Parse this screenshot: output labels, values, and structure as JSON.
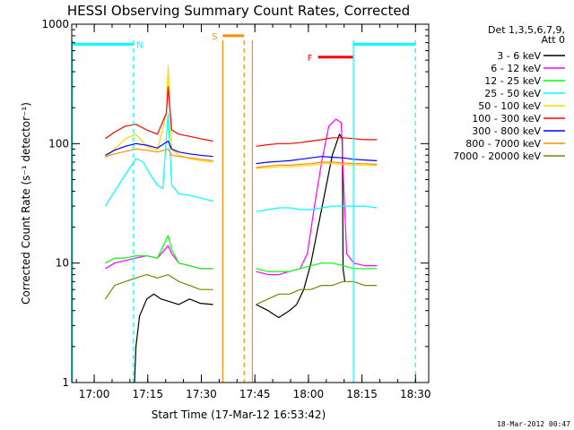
{
  "chart_data": {
    "type": "line",
    "title": "HESSI Observing Summary Count Rates, Corrected",
    "xlabel": "Start Time (17-Mar-12 16:53:42)",
    "ylabel": "Corrected Count Rate (s⁻¹ detector⁻¹)",
    "yscale": "log",
    "ylim": [
      1,
      1000
    ],
    "xlim_minutes": [
      0,
      100
    ],
    "y_ticks": [
      {
        "value": 1,
        "label": "1"
      },
      {
        "value": 10,
        "label": "10"
      },
      {
        "value": 100,
        "label": "100"
      },
      {
        "value": 1000,
        "label": "1000"
      }
    ],
    "x_ticks": [
      {
        "value": 6.3,
        "label": "17:00"
      },
      {
        "value": 21.3,
        "label": "17:15"
      },
      {
        "value": 36.3,
        "label": "17:30"
      },
      {
        "value": 51.3,
        "label": "17:45"
      },
      {
        "value": 66.3,
        "label": "18:00"
      },
      {
        "value": 81.3,
        "label": "18:15"
      },
      {
        "value": 96.3,
        "label": "18:30"
      }
    ],
    "legend_header": [
      "Det 1,3,5,6,7,9,",
      "Att 0"
    ],
    "legend_placement": "right",
    "footer": "18-Mar-2012 00:47",
    "markers": [
      {
        "label": "N",
        "color": "#00ffff",
        "start": 0,
        "end": 17.3
      },
      {
        "label": "S",
        "color": "#ff8c00",
        "start": 42.3,
        "end": 48.3
      },
      {
        "label": "F",
        "color": "#ff0000",
        "start": 69.0,
        "end": 78.9
      }
    ],
    "vlines": [
      {
        "x": 0.2,
        "color": "#00ffff",
        "dashed": false
      },
      {
        "x": 17.3,
        "color": "#00ffff",
        "dashed": true
      },
      {
        "x": 42.3,
        "color": "#ff8c00",
        "dashed": false
      },
      {
        "x": 48.3,
        "color": "#ff8c00",
        "dashed": true
      },
      {
        "x": 50.6,
        "color": "#ff8c00",
        "dashed": false
      },
      {
        "x": 78.9,
        "color": "#00ffff",
        "dashed": false
      },
      {
        "x": 96.3,
        "color": "#00ffff",
        "dashed": true
      }
    ],
    "series": [
      {
        "name": "3 - 6 keV",
        "color": "#000000",
        "segments": [
          [
            [
              17.6,
              1.0
            ],
            [
              18.0,
              2.0
            ],
            [
              19.0,
              3.6
            ],
            [
              21.0,
              5.0
            ],
            [
              23.0,
              5.5
            ],
            [
              25.0,
              5.0
            ],
            [
              27.0,
              4.8
            ],
            [
              30.0,
              4.5
            ],
            [
              33.0,
              5.0
            ],
            [
              36.0,
              4.6
            ],
            [
              39.6,
              4.5
            ]
          ],
          [
            [
              51.6,
              4.5
            ],
            [
              55.0,
              4.0
            ],
            [
              58.0,
              3.5
            ],
            [
              61.0,
              4.0
            ],
            [
              63.0,
              4.5
            ],
            [
              65.0,
              6.0
            ],
            [
              67.0,
              10.0
            ],
            [
              69.0,
              20.0
            ],
            [
              71.0,
              40.0
            ],
            [
              73.0,
              80.0
            ],
            [
              75.0,
              120.0
            ],
            [
              75.8,
              110.0
            ],
            [
              76.0,
              9.0
            ],
            [
              76.5,
              7.0
            ]
          ]
        ]
      },
      {
        "name": "6 - 12 keV",
        "color": "#ff00ff",
        "segments": [
          [
            [
              9.4,
              9.0
            ],
            [
              12.0,
              10.0
            ],
            [
              15.0,
              10.5
            ],
            [
              18.0,
              11.0
            ],
            [
              21.0,
              11.5
            ],
            [
              24.0,
              11.0
            ],
            [
              27.0,
              14.0
            ],
            [
              28.0,
              12.0
            ],
            [
              30.0,
              10.0
            ],
            [
              33.0,
              9.5
            ],
            [
              36.0,
              9.0
            ],
            [
              39.6,
              9.0
            ]
          ],
          [
            [
              51.6,
              8.5
            ],
            [
              55.0,
              8.0
            ],
            [
              58.0,
              8.0
            ],
            [
              61.0,
              8.5
            ],
            [
              64.0,
              9.0
            ],
            [
              66.0,
              12.0
            ],
            [
              68.0,
              30.0
            ],
            [
              70.0,
              70.0
            ],
            [
              72.0,
              140.0
            ],
            [
              74.0,
              160.0
            ],
            [
              75.5,
              150.0
            ],
            [
              76.0,
              60.0
            ],
            [
              77.0,
              12.0
            ],
            [
              79.0,
              10.0
            ],
            [
              82.0,
              9.5
            ],
            [
              85.5,
              9.5
            ]
          ]
        ]
      },
      {
        "name": "12 - 25 keV",
        "color": "#00ff00",
        "segments": [
          [
            [
              9.4,
              10.0
            ],
            [
              12.0,
              11.0
            ],
            [
              15.0,
              11.0
            ],
            [
              18.0,
              11.5
            ],
            [
              21.0,
              11.5
            ],
            [
              24.0,
              11.0
            ],
            [
              27.0,
              17.0
            ],
            [
              28.0,
              13.0
            ],
            [
              30.0,
              10.0
            ],
            [
              33.0,
              9.5
            ],
            [
              36.0,
              9.0
            ],
            [
              39.6,
              9.0
            ]
          ],
          [
            [
              51.6,
              9.0
            ],
            [
              55.0,
              8.5
            ],
            [
              58.0,
              8.5
            ],
            [
              61.0,
              8.5
            ],
            [
              64.0,
              9.0
            ],
            [
              67.0,
              9.5
            ],
            [
              70.0,
              10.0
            ],
            [
              73.0,
              10.0
            ],
            [
              76.0,
              9.5
            ],
            [
              79.0,
              9.0
            ],
            [
              82.0,
              9.0
            ],
            [
              85.5,
              9.0
            ]
          ]
        ]
      },
      {
        "name": "25 - 50 keV",
        "color": "#00ffff",
        "segments": [
          [
            [
              9.4,
              30.0
            ],
            [
              12.0,
              40.0
            ],
            [
              15.0,
              55.0
            ],
            [
              18.0,
              75.0
            ],
            [
              20.0,
              70.0
            ],
            [
              22.0,
              55.0
            ],
            [
              24.0,
              45.0
            ],
            [
              25.5,
              42.0
            ],
            [
              27.0,
              180.0
            ],
            [
              28.0,
              45.0
            ],
            [
              30.0,
              38.0
            ],
            [
              33.0,
              37.0
            ],
            [
              36.0,
              35.0
            ],
            [
              39.6,
              33.0
            ]
          ],
          [
            [
              51.6,
              27.0
            ],
            [
              55.0,
              28.0
            ],
            [
              58.0,
              29.0
            ],
            [
              61.0,
              29.0
            ],
            [
              64.0,
              28.0
            ],
            [
              67.0,
              28.0
            ],
            [
              70.0,
              29.0
            ],
            [
              73.0,
              30.0
            ],
            [
              76.0,
              30.0
            ],
            [
              79.0,
              30.0
            ],
            [
              82.0,
              30.0
            ],
            [
              85.5,
              29.0
            ]
          ]
        ]
      },
      {
        "name": "50 - 100 keV",
        "color": "#ffd700",
        "segments": [
          [
            [
              9.4,
              75.0
            ],
            [
              12.0,
              90.0
            ],
            [
              15.0,
              110.0
            ],
            [
              18.0,
              120.0
            ],
            [
              21.0,
              95.0
            ],
            [
              24.0,
              88.0
            ],
            [
              26.5,
              180.0
            ],
            [
              27.0,
              450.0
            ],
            [
              28.0,
              90.0
            ],
            [
              30.0,
              80.0
            ],
            [
              33.0,
              75.0
            ],
            [
              36.0,
              72.0
            ],
            [
              39.6,
              70.0
            ]
          ],
          [
            [
              51.6,
              62.0
            ],
            [
              55.0,
              63.0
            ],
            [
              58.0,
              64.0
            ],
            [
              61.0,
              64.0
            ],
            [
              64.0,
              65.0
            ],
            [
              67.0,
              66.0
            ],
            [
              70.0,
              68.0
            ],
            [
              73.0,
              68.0
            ],
            [
              76.0,
              67.0
            ],
            [
              79.0,
              66.0
            ],
            [
              82.0,
              66.0
            ],
            [
              85.5,
              66.0
            ]
          ]
        ]
      },
      {
        "name": "100 - 300 keV",
        "color": "#ff0000",
        "segments": [
          [
            [
              9.4,
              110.0
            ],
            [
              12.0,
              125.0
            ],
            [
              15.0,
              140.0
            ],
            [
              18.0,
              145.0
            ],
            [
              21.0,
              130.0
            ],
            [
              24.0,
              120.0
            ],
            [
              26.5,
              180.0
            ],
            [
              27.0,
              300.0
            ],
            [
              28.0,
              130.0
            ],
            [
              30.0,
              120.0
            ],
            [
              33.0,
              115.0
            ],
            [
              36.0,
              110.0
            ],
            [
              39.6,
              105.0
            ]
          ],
          [
            [
              51.6,
              95.0
            ],
            [
              55.0,
              98.0
            ],
            [
              58.0,
              100.0
            ],
            [
              61.0,
              100.0
            ],
            [
              64.0,
              102.0
            ],
            [
              67.0,
              105.0
            ],
            [
              70.0,
              108.0
            ],
            [
              73.0,
              112.0
            ],
            [
              76.0,
              112.0
            ],
            [
              79.0,
              110.0
            ],
            [
              82.0,
              108.0
            ],
            [
              85.5,
              108.0
            ]
          ]
        ]
      },
      {
        "name": "300 - 800 keV",
        "color": "#0000ff",
        "segments": [
          [
            [
              9.4,
              80.0
            ],
            [
              12.0,
              88.0
            ],
            [
              15.0,
              95.0
            ],
            [
              18.0,
              100.0
            ],
            [
              21.0,
              97.0
            ],
            [
              24.0,
              92.0
            ],
            [
              27.0,
              105.0
            ],
            [
              28.0,
              90.0
            ],
            [
              30.0,
              85.0
            ],
            [
              33.0,
              82.0
            ],
            [
              36.0,
              80.0
            ],
            [
              39.6,
              78.0
            ]
          ],
          [
            [
              51.6,
              68.0
            ],
            [
              55.0,
              70.0
            ],
            [
              58.0,
              71.0
            ],
            [
              61.0,
              72.0
            ],
            [
              64.0,
              74.0
            ],
            [
              67.0,
              76.0
            ],
            [
              70.0,
              78.0
            ],
            [
              73.0,
              77.0
            ],
            [
              76.0,
              76.0
            ],
            [
              79.0,
              74.0
            ],
            [
              82.0,
              73.0
            ],
            [
              85.5,
              72.0
            ]
          ]
        ]
      },
      {
        "name": "800 - 7000 keV",
        "color": "#ff8c00",
        "segments": [
          [
            [
              9.4,
              78.0
            ],
            [
              12.0,
              82.0
            ],
            [
              15.0,
              86.0
            ],
            [
              18.0,
              90.0
            ],
            [
              21.0,
              88.0
            ],
            [
              24.0,
              85.0
            ],
            [
              27.0,
              90.0
            ],
            [
              28.0,
              80.0
            ],
            [
              30.0,
              78.0
            ],
            [
              33.0,
              76.0
            ],
            [
              36.0,
              74.0
            ],
            [
              39.6,
              72.0
            ]
          ],
          [
            [
              51.6,
              63.0
            ],
            [
              55.0,
              65.0
            ],
            [
              58.0,
              66.0
            ],
            [
              61.0,
              66.0
            ],
            [
              64.0,
              67.0
            ],
            [
              67.0,
              68.0
            ],
            [
              70.0,
              70.0
            ],
            [
              73.0,
              70.0
            ],
            [
              76.0,
              69.0
            ],
            [
              79.0,
              68.0
            ],
            [
              82.0,
              68.0
            ],
            [
              85.5,
              67.0
            ]
          ]
        ]
      },
      {
        "name": "7000 - 20000 keV",
        "color": "#808000",
        "segments": [
          [
            [
              9.4,
              5.0
            ],
            [
              12.0,
              6.5
            ],
            [
              15.0,
              7.0
            ],
            [
              18.0,
              7.5
            ],
            [
              21.0,
              8.0
            ],
            [
              24.0,
              7.5
            ],
            [
              27.0,
              8.0
            ],
            [
              30.0,
              7.0
            ],
            [
              33.0,
              6.5
            ],
            [
              36.0,
              6.0
            ],
            [
              39.6,
              6.0
            ]
          ],
          [
            [
              51.6,
              4.5
            ],
            [
              55.0,
              5.0
            ],
            [
              58.0,
              5.5
            ],
            [
              61.0,
              5.5
            ],
            [
              64.0,
              6.0
            ],
            [
              67.0,
              6.0
            ],
            [
              70.0,
              6.5
            ],
            [
              73.0,
              6.5
            ],
            [
              76.0,
              7.0
            ],
            [
              79.0,
              7.0
            ],
            [
              82.0,
              6.5
            ],
            [
              85.5,
              6.5
            ]
          ]
        ]
      }
    ]
  }
}
